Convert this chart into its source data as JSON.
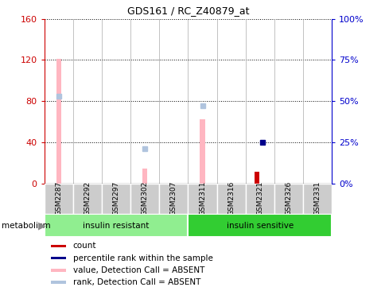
{
  "title": "GDS161 / RC_Z40879_at",
  "samples": [
    "GSM2287",
    "GSM2292",
    "GSM2297",
    "GSM2302",
    "GSM2307",
    "GSM2311",
    "GSM2316",
    "GSM2321",
    "GSM2326",
    "GSM2331"
  ],
  "ylim_left": [
    0,
    160
  ],
  "ylim_right": [
    0,
    100
  ],
  "yticks_left": [
    0,
    40,
    80,
    120,
    160
  ],
  "yticks_right": [
    0,
    25,
    50,
    75,
    100
  ],
  "yticklabels_right": [
    "0%",
    "25%",
    "50%",
    "75%",
    "100%"
  ],
  "pink_bars": {
    "GSM2287": 121,
    "GSM2302": 14,
    "GSM2311": 62,
    "GSM2321": 0
  },
  "pink_bar_color": "#FFB6C1",
  "rank_absent_markers": {
    "GSM2287": 53,
    "GSM2302": 21,
    "GSM2311": 47
  },
  "rank_absent_color": "#B0C4DE",
  "count_bars": {
    "GSM2321": 11
  },
  "count_color": "#CC0000",
  "percentile_markers": {
    "GSM2321": 25
  },
  "percentile_color": "#00008B",
  "ylabel_left_color": "#CC0000",
  "ylabel_right_color": "#0000CC",
  "legend_items": [
    {
      "label": "count",
      "color": "#CC0000"
    },
    {
      "label": "percentile rank within the sample",
      "color": "#00008B"
    },
    {
      "label": "value, Detection Call = ABSENT",
      "color": "#FFB6C1"
    },
    {
      "label": "rank, Detection Call = ABSENT",
      "color": "#B0C4DE"
    }
  ],
  "group_defs": [
    {
      "label": "insulin resistant",
      "start": 0,
      "end": 4,
      "color": "#90EE90"
    },
    {
      "label": "insulin sensitive",
      "start": 5,
      "end": 9,
      "color": "#32CD32"
    }
  ],
  "metabolism_label": "metabolism"
}
